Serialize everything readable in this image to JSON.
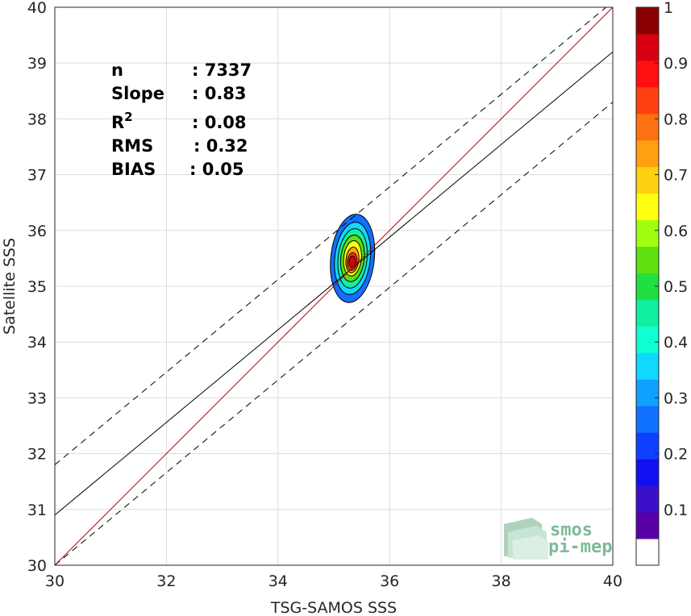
{
  "chart_data": {
    "type": "contour",
    "xlabel": "TSG-SAMOS SSS",
    "ylabel": "Satellite SSS",
    "xlim": [
      30,
      40
    ],
    "ylim": [
      30,
      40
    ],
    "xticks": [
      "30",
      "32",
      "34",
      "36",
      "38",
      "40"
    ],
    "yticks": [
      "30",
      "31",
      "32",
      "33",
      "34",
      "35",
      "36",
      "37",
      "38",
      "39",
      "40"
    ],
    "grid": true,
    "stats": [
      {
        "label": "n",
        "value": ": 7337"
      },
      {
        "label": "Slope",
        "value": ": 0.83"
      },
      {
        "label": "R",
        "sup": "2",
        "value": ": 0.08"
      },
      {
        "label": "RMS",
        "value": ": 0.32"
      },
      {
        "label": "BIAS",
        "value": ": 0.05"
      }
    ],
    "lines": {
      "identity": {
        "slope": 1,
        "intercept": 0,
        "color": "#cc0000"
      },
      "fit": {
        "slope": 0.83,
        "intercept": 6.0,
        "color": "#000000"
      },
      "upper_bound": {
        "slope": 0.83,
        "intercept": 6.9,
        "style": "dashed"
      },
      "lower_bound": {
        "slope": 0.83,
        "intercept": 5.1,
        "style": "dashed"
      }
    },
    "density_center": {
      "x": 35.3,
      "y": 35.3
    },
    "contour_levels": [
      0.05,
      0.1,
      0.2,
      0.3,
      0.4,
      0.5,
      0.6,
      0.7,
      0.8,
      0.9,
      1.0
    ],
    "colorbar": {
      "range": [
        0,
        1
      ],
      "ticks": [
        "0.1",
        "0.2",
        "0.3",
        "0.4",
        "0.5",
        "0.6",
        "0.7",
        "0.8",
        "0.9",
        "1"
      ],
      "colors": [
        "#ffffff",
        "#5a00a8",
        "#3a10c8",
        "#1010f0",
        "#1040ff",
        "#1070ff",
        "#10a0ff",
        "#10d8ff",
        "#10ffd0",
        "#10f0a0",
        "#20e040",
        "#60e010",
        "#a0ff10",
        "#ffff10",
        "#ffd010",
        "#ffa010",
        "#ff7010",
        "#ff4010",
        "#ff1010",
        "#d80010",
        "#8a0000"
      ]
    },
    "logo": {
      "line1": "smos",
      "line2": "pi-mep"
    }
  }
}
